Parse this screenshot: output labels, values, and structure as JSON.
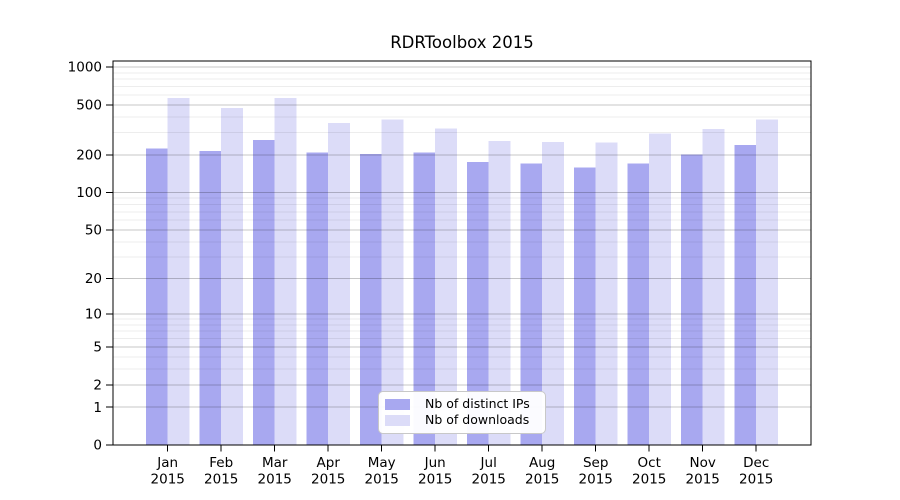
{
  "chart_data": {
    "type": "bar",
    "title": "RDRToolbox 2015",
    "y_scale": "log1p",
    "ylim": [
      0,
      1000
    ],
    "y_ticks": [
      0,
      1,
      2,
      5,
      10,
      20,
      50,
      100,
      200,
      500,
      1000
    ],
    "y_minor_ticks": [
      3,
      4,
      6,
      7,
      8,
      9,
      30,
      40,
      60,
      70,
      80,
      90,
      300,
      400,
      600,
      700,
      800,
      900
    ],
    "categories": [
      "Jan",
      "Feb",
      "Mar",
      "Apr",
      "May",
      "Jun",
      "Jul",
      "Aug",
      "Sep",
      "Oct",
      "Nov",
      "Dec"
    ],
    "x_tick_second_line": "2015",
    "series": [
      {
        "name": "Nb of distinct IPs",
        "color": "#a8a8f0",
        "values": [
          225,
          215,
          262,
          208,
          203,
          208,
          176,
          170,
          158,
          170,
          201,
          239
        ]
      },
      {
        "name": "Nb of downloads",
        "color": "#dcdcf8",
        "values": [
          565,
          470,
          565,
          360,
          384,
          325,
          258,
          253,
          252,
          297,
          321,
          384
        ]
      }
    ],
    "legend_position": "lower center",
    "grid": true,
    "colors": {
      "frame": "#000000",
      "tick_text": "#000000",
      "legend_border": "#c8c8c8",
      "background": "#ffffff"
    }
  }
}
